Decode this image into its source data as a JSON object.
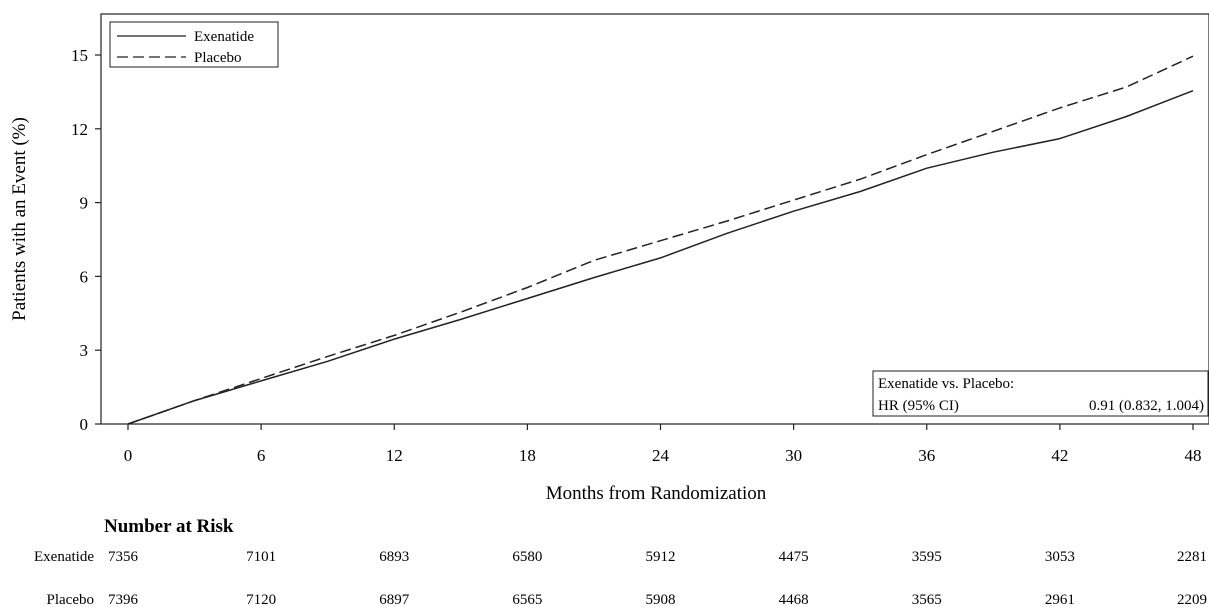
{
  "chart_data": {
    "type": "line",
    "xlabel": "Months from Randomization",
    "ylabel": "Patients with an Event (%)",
    "xlim": [
      0,
      48
    ],
    "ylim": [
      0,
      15
    ],
    "x_ticks": [
      0,
      6,
      12,
      18,
      24,
      30,
      36,
      42,
      48
    ],
    "y_ticks": [
      0,
      3,
      6,
      9,
      12,
      15
    ],
    "legend": {
      "placement": "top-left",
      "entries": [
        {
          "label": "Exenatide",
          "style": "solid"
        },
        {
          "label": "Placebo",
          "style": "dashed"
        }
      ]
    },
    "series": [
      {
        "name": "Exenatide",
        "style": "solid",
        "x": [
          0,
          3,
          6,
          9,
          12,
          15,
          18,
          21,
          24,
          27,
          30,
          33,
          36,
          39,
          42,
          45,
          48
        ],
        "y": [
          0,
          0.95,
          1.75,
          2.55,
          3.45,
          4.25,
          5.1,
          5.95,
          6.75,
          7.75,
          8.65,
          9.45,
          10.4,
          11.05,
          11.6,
          12.5,
          13.55
        ]
      },
      {
        "name": "Placebo",
        "style": "dashed",
        "x": [
          0,
          3,
          6,
          9,
          12,
          15,
          18,
          21,
          24,
          27,
          30,
          33,
          36,
          39,
          42,
          45,
          48
        ],
        "y": [
          0,
          0.95,
          1.85,
          2.75,
          3.6,
          4.55,
          5.55,
          6.65,
          7.45,
          8.25,
          9.1,
          9.95,
          10.95,
          11.9,
          12.85,
          13.7,
          14.95
        ]
      }
    ],
    "annotation": {
      "header": "Exenatide vs. Placebo:",
      "label": "HR (95% CI)",
      "value": "0.91 (0.832, 1.004)",
      "placement": "bottom-right"
    },
    "risk_table": {
      "title": "Number at Risk",
      "rows": [
        {
          "name": "Exenatide",
          "values": [
            7356,
            7101,
            6893,
            6580,
            5912,
            4475,
            3595,
            3053,
            2281
          ]
        },
        {
          "name": "Placebo",
          "values": [
            7396,
            7120,
            6897,
            6565,
            5908,
            4468,
            3565,
            2961,
            2209
          ]
        }
      ]
    }
  }
}
